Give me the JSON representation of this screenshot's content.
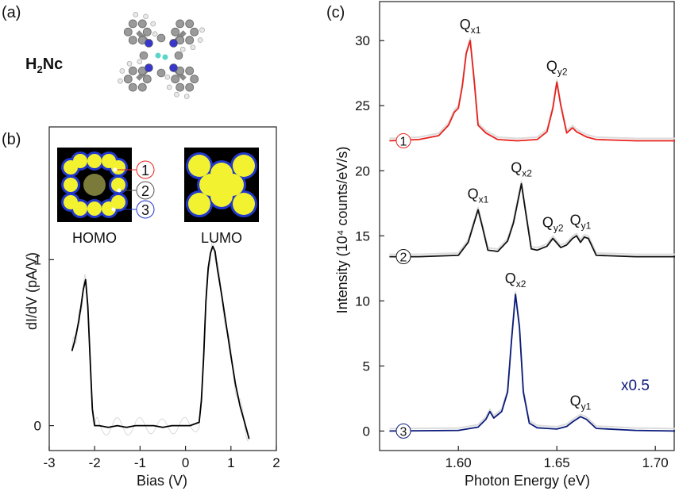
{
  "panels": {
    "a": {
      "label": "(a)",
      "molecule_name": "H",
      "molecule_sub": "2",
      "molecule_rest": "Nc"
    },
    "b": {
      "label": "(b)"
    },
    "c": {
      "label": "(c)"
    }
  },
  "insets": {
    "homo": "HOMO",
    "lumo": "LUMO",
    "markers": [
      "1",
      "2",
      "3"
    ]
  },
  "colors": {
    "trace_b": "#000000",
    "spectrum_1": "#e8211c",
    "spectrum_2": "#111111",
    "spectrum_3": "#0a1a7a",
    "noise": "#d9d9d9",
    "orbital_yellow": "#f2f230",
    "orbital_blue": "#2238c8"
  },
  "chart_data": [
    {
      "id": "b",
      "type": "line",
      "xlabel": "Bias (V)",
      "ylabel": "dI/dV (pA/V)",
      "xlim": [
        -3,
        2
      ],
      "xticks": [
        "-3",
        "-2",
        "-1",
        "0",
        "1",
        "2"
      ],
      "yticks": [
        "0",
        "1"
      ],
      "ytick_values": [
        0,
        1
      ],
      "ylim": [
        -0.15,
        1.8
      ],
      "series": [
        {
          "x": [
            -2.5,
            -2.45,
            -2.4,
            -2.35,
            -2.3,
            -2.25,
            -2.2,
            -2.15,
            -2.1,
            -2.05,
            -2.0,
            -1.9,
            -1.7,
            -1.5,
            -1.3,
            -1.1,
            -0.9,
            -0.7,
            -0.5,
            -0.3,
            -0.1,
            0.1,
            0.3,
            0.35,
            0.4,
            0.45,
            0.5,
            0.55,
            0.6,
            0.65,
            0.7,
            0.8,
            0.9,
            1.0,
            1.1,
            1.2,
            1.3,
            1.4
          ],
          "y": [
            0.45,
            0.5,
            0.56,
            0.63,
            0.72,
            0.82,
            0.88,
            0.72,
            0.4,
            0.1,
            0.0,
            0.0,
            -0.01,
            0.0,
            -0.01,
            0.0,
            0.0,
            0.0,
            -0.01,
            0.0,
            0.0,
            0.0,
            0.02,
            0.15,
            0.42,
            0.75,
            0.95,
            1.04,
            1.08,
            1.05,
            0.95,
            0.78,
            0.6,
            0.42,
            0.25,
            0.12,
            0.02,
            -0.08
          ]
        }
      ]
    },
    {
      "id": "c",
      "type": "line",
      "xlabel": "Photon Energy (eV)",
      "ylabel": "Intensity (10⁴ counts/eV/s)",
      "xlim": [
        1.56,
        1.71
      ],
      "ylim": [
        -1.5,
        33
      ],
      "xticks": [
        "1.60",
        "1.65",
        "1.70"
      ],
      "xtick_values": [
        1.6,
        1.65,
        1.7
      ],
      "yticks": [
        "0",
        "5",
        "10",
        "15",
        "20",
        "25",
        "30"
      ],
      "ytick_values": [
        0,
        5,
        10,
        15,
        20,
        25,
        30
      ],
      "scale_note": "x0.5",
      "series": [
        {
          "marker": "1",
          "x": [
            1.565,
            1.58,
            1.59,
            1.595,
            1.598,
            1.6,
            1.602,
            1.604,
            1.606,
            1.608,
            1.61,
            1.614,
            1.62,
            1.63,
            1.64,
            1.645,
            1.648,
            1.65,
            1.652,
            1.655,
            1.658,
            1.66,
            1.665,
            1.67,
            1.69,
            1.71
          ],
          "y": [
            22.3,
            22.4,
            22.7,
            23.5,
            24.5,
            24.8,
            26.5,
            29.0,
            30.0,
            27.0,
            23.5,
            22.9,
            22.4,
            22.3,
            22.4,
            23.0,
            24.8,
            26.8,
            25.0,
            22.9,
            23.3,
            23.0,
            22.6,
            22.4,
            22.3,
            22.3
          ]
        },
        {
          "marker": "2",
          "x": [
            1.565,
            1.58,
            1.6,
            1.605,
            1.608,
            1.61,
            1.612,
            1.615,
            1.62,
            1.625,
            1.628,
            1.63,
            1.632,
            1.634,
            1.637,
            1.64,
            1.645,
            1.648,
            1.652,
            1.655,
            1.658,
            1.66,
            1.662,
            1.664,
            1.666,
            1.67,
            1.69,
            1.71
          ],
          "y": [
            13.4,
            13.4,
            13.5,
            14.5,
            16.0,
            17.0,
            15.8,
            13.9,
            13.8,
            14.6,
            16.0,
            17.5,
            19.0,
            17.0,
            14.0,
            13.9,
            14.2,
            14.8,
            14.1,
            14.3,
            14.8,
            15.0,
            14.5,
            14.9,
            14.8,
            13.5,
            13.4,
            13.4
          ]
        },
        {
          "marker": "3",
          "x": [
            1.565,
            1.6,
            1.61,
            1.614,
            1.616,
            1.618,
            1.622,
            1.625,
            1.627,
            1.629,
            1.631,
            1.633,
            1.636,
            1.64,
            1.645,
            1.65,
            1.655,
            1.658,
            1.662,
            1.665,
            1.67,
            1.69,
            1.71
          ],
          "y": [
            0.0,
            0.05,
            0.3,
            0.9,
            1.5,
            1.0,
            1.5,
            3.0,
            7.0,
            10.5,
            8.0,
            3.0,
            0.6,
            0.25,
            0.2,
            0.15,
            0.35,
            0.7,
            1.1,
            0.9,
            0.2,
            0.05,
            0.0
          ]
        }
      ],
      "annotations": [
        {
          "series": "1",
          "main": "Q",
          "sub": "x1",
          "at": [
            1.606,
            30.0
          ]
        },
        {
          "series": "1",
          "main": "Q",
          "sub": "y2",
          "at": [
            1.65,
            26.8
          ]
        },
        {
          "series": "2",
          "main": "Q",
          "sub": "x1",
          "at": [
            1.61,
            17.0
          ]
        },
        {
          "series": "2",
          "main": "Q",
          "sub": "x2",
          "at": [
            1.632,
            19.0
          ]
        },
        {
          "series": "2",
          "main": "Q",
          "sub": "y2",
          "at": [
            1.648,
            14.8
          ]
        },
        {
          "series": "2",
          "main": "Q",
          "sub": "y1",
          "at": [
            1.662,
            15.0
          ]
        },
        {
          "series": "3",
          "main": "Q",
          "sub": "x2",
          "at": [
            1.629,
            10.5
          ]
        },
        {
          "series": "3",
          "main": "Q",
          "sub": "y1",
          "at": [
            1.662,
            1.1
          ]
        }
      ]
    }
  ]
}
